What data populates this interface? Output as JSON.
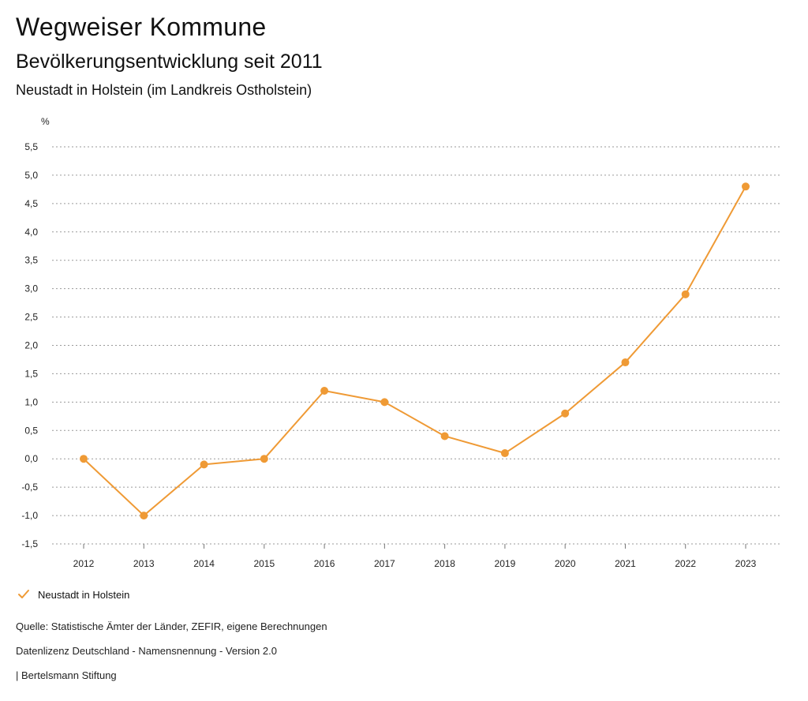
{
  "header": {
    "title": "Wegweiser Kommune",
    "subtitle": "Bevölkerungsentwicklung seit 2011",
    "region": "Neustadt in Holstein (im Landkreis Ostholstein)"
  },
  "chart_data": {
    "type": "line",
    "ylabel": "%",
    "xlabel": "",
    "categories": [
      "2012",
      "2013",
      "2014",
      "2015",
      "2016",
      "2017",
      "2018",
      "2019",
      "2020",
      "2021",
      "2022",
      "2023"
    ],
    "series": [
      {
        "name": "Neustadt in Holstein",
        "color": "#ef9a35",
        "values": [
          0.0,
          -1.0,
          -0.1,
          0.0,
          1.2,
          1.0,
          0.4,
          0.1,
          0.8,
          1.7,
          2.9,
          4.8
        ]
      }
    ],
    "ylim": [
      -1.5,
      5.5
    ],
    "yticks": [
      5.5,
      5.0,
      4.5,
      4.0,
      3.5,
      3.0,
      2.5,
      2.0,
      1.5,
      1.0,
      0.5,
      0.0,
      -0.5,
      -1.0,
      -1.5
    ],
    "ytick_labels": [
      "5,5",
      "5,0",
      "4,5",
      "4,0",
      "3,5",
      "3,0",
      "2,5",
      "2,0",
      "1,5",
      "1,0",
      "0,5",
      "0,0",
      "-0,5",
      "-1,0",
      "-1,5"
    ],
    "grid": true,
    "legend_position": "bottom-left"
  },
  "legend": {
    "label": "Neustadt in Holstein",
    "icon": "check-icon"
  },
  "footer": {
    "source": "Quelle: Statistische Ämter der Länder, ZEFIR, eigene Berechnungen",
    "license": "Datenlizenz Deutschland - Namensnennung - Version 2.0",
    "publisher": "| Bertelsmann Stiftung"
  }
}
